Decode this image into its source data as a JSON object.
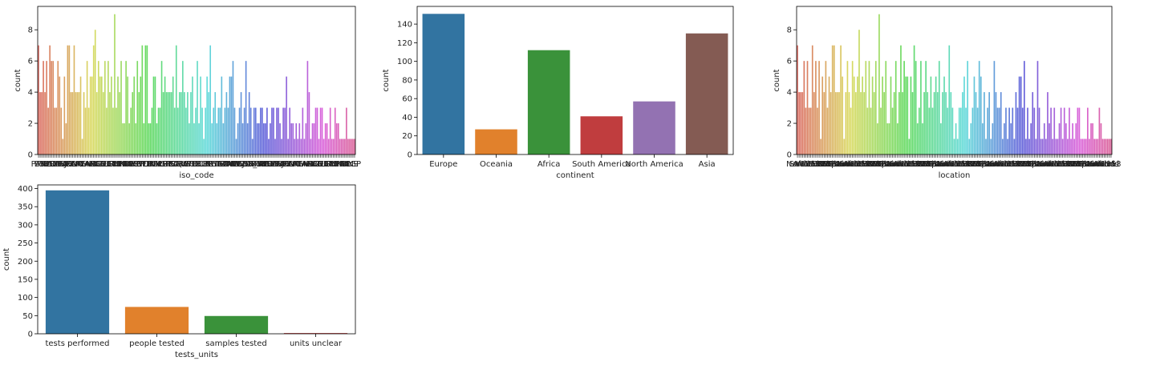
{
  "chart_data": [
    {
      "type": "bar",
      "xlabel": "iso_code",
      "ylabel": "count",
      "ylim": [
        0,
        9.5
      ],
      "yticks": [
        0,
        2,
        4,
        6,
        8
      ],
      "tick_label_seed": [
        "PAK",
        "ESP",
        "FRA",
        "NLD",
        "USA",
        "GBR",
        "DEU",
        "ITA",
        "IND",
        "BRA",
        "JPN",
        "KOR",
        "ZAF",
        "NGA",
        "KEN",
        "CAN",
        "MEX",
        "ARG",
        "AUS",
        "NZL",
        "RUS",
        "TUR",
        "EGY",
        "IRN",
        "CHN",
        "THA",
        "VNM",
        "PHL",
        "IDN",
        "MYS",
        "SGP",
        "POL",
        "SWE",
        "NOR",
        "FIN",
        "DNK",
        "BEL",
        "CHE",
        "AUT",
        "PRT",
        "GRC",
        "IRL",
        "ISR",
        "SAU",
        "ARE",
        "QAT",
        "KWT",
        "CHL",
        "PER",
        "COL",
        "ECU",
        "BOL",
        "URY",
        "PRY",
        "GHA",
        "ETH",
        "UGA",
        "TZA",
        "RWA",
        "ZMB",
        "ZWE",
        "MAR",
        "TUN",
        "DZA",
        "LBN",
        "JOR",
        "OWID_WRL"
      ],
      "values": [
        7,
        4,
        4,
        6,
        4,
        6,
        3,
        7,
        6,
        6,
        3,
        3,
        6,
        5,
        3,
        1,
        5,
        2,
        7,
        7,
        4,
        4,
        7,
        4,
        4,
        4,
        5,
        1,
        4,
        3,
        6,
        3,
        5,
        5,
        7,
        8,
        4,
        6,
        5,
        5,
        4,
        6,
        3,
        6,
        4,
        5,
        3,
        9,
        3,
        5,
        4,
        6,
        2,
        2,
        6,
        5,
        2,
        3,
        4,
        5,
        2,
        6,
        4,
        5,
        7,
        2,
        7,
        7,
        2,
        2,
        3,
        5,
        5,
        2,
        3,
        3,
        6,
        4,
        5,
        4,
        4,
        4,
        4,
        5,
        3,
        7,
        3,
        4,
        4,
        6,
        4,
        3,
        4,
        2,
        4,
        5,
        2,
        3,
        6,
        2,
        5,
        3,
        1,
        3,
        5,
        4,
        7,
        2,
        3,
        4,
        2,
        3,
        3,
        5,
        2,
        3,
        4,
        3,
        5,
        5,
        6,
        3,
        1,
        2,
        3,
        4,
        2,
        3,
        6,
        2,
        4,
        3,
        1,
        3,
        3,
        2,
        2,
        3,
        3,
        2,
        2,
        3,
        1,
        2,
        3,
        3,
        1,
        3,
        3,
        2,
        1,
        3,
        3,
        5,
        1,
        3,
        2,
        2,
        1,
        2,
        1,
        2,
        1,
        3,
        1,
        2,
        6,
        4,
        1,
        2,
        2,
        3,
        3,
        1,
        3,
        3,
        1,
        2,
        2,
        1,
        3,
        1,
        1,
        3,
        2,
        2,
        1,
        1,
        1,
        1,
        3,
        1,
        1,
        1,
        1,
        1
      ]
    },
    {
      "type": "bar",
      "xlabel": "continent",
      "ylabel": "count",
      "ylim": [
        0,
        159
      ],
      "yticks": [
        0,
        20,
        40,
        60,
        80,
        100,
        120,
        140
      ],
      "categories": [
        "Europe",
        "Oceania",
        "Africa",
        "South America",
        "North America",
        "Asia"
      ],
      "values": [
        151,
        27,
        112,
        41,
        57,
        130
      ],
      "colors": [
        "#3274a1",
        "#e1812c",
        "#3a923a",
        "#c03d3e",
        "#9372b2",
        "#845b53"
      ]
    },
    {
      "type": "bar",
      "xlabel": "location",
      "ylabel": "count",
      "ylim": [
        0,
        9.5
      ],
      "yticks": [
        0,
        2,
        4,
        6,
        8
      ],
      "tick_label_seed": [
        "North",
        "South",
        "Africa",
        "World",
        "1953",
        "1977",
        "1989",
        "1975",
        "1999",
        "2013",
        "2021",
        "Pakistan",
        "Spain",
        "France",
        "Netherlands"
      ],
      "last_tick_label": "Netherlands",
      "values": [
        7,
        4,
        4,
        4,
        6,
        3,
        6,
        3,
        3,
        7,
        4,
        6,
        3,
        6,
        1,
        5,
        4,
        6,
        3,
        5,
        4,
        7,
        7,
        4,
        4,
        4,
        7,
        5,
        1,
        4,
        6,
        4,
        3,
        6,
        5,
        4,
        5,
        8,
        4,
        5,
        4,
        6,
        3,
        6,
        3,
        5,
        4,
        6,
        2,
        9,
        3,
        5,
        4,
        6,
        2,
        2,
        5,
        3,
        4,
        6,
        2,
        4,
        7,
        4,
        6,
        5,
        5,
        1,
        5,
        4,
        7,
        6,
        2,
        3,
        6,
        2,
        4,
        6,
        4,
        3,
        5,
        3,
        4,
        5,
        4,
        6,
        2,
        4,
        5,
        4,
        3,
        7,
        4,
        3,
        1,
        2,
        1,
        3,
        3,
        4,
        5,
        3,
        6,
        1,
        2,
        3,
        5,
        4,
        3,
        6,
        5,
        2,
        4,
        1,
        3,
        4,
        1,
        2,
        6,
        4,
        3,
        3,
        4,
        1,
        2,
        3,
        1,
        3,
        2,
        3,
        1,
        4,
        3,
        5,
        5,
        3,
        6,
        1,
        3,
        1,
        2,
        4,
        3,
        1,
        6,
        3,
        1,
        1,
        2,
        1,
        4,
        2,
        3,
        1,
        3,
        1,
        1,
        2,
        3,
        1,
        3,
        2,
        1,
        3,
        1,
        2,
        1,
        2,
        3,
        3,
        1,
        1,
        1,
        1,
        3,
        1,
        2,
        2,
        1,
        1,
        1,
        3,
        2,
        1,
        1,
        1,
        1,
        1,
        1
      ]
    },
    {
      "type": "bar",
      "xlabel": "tests_units",
      "ylabel": "count",
      "ylim": [
        0,
        410
      ],
      "yticks": [
        0,
        50,
        100,
        150,
        200,
        250,
        300,
        350,
        400
      ],
      "categories": [
        "tests performed",
        "people tested",
        "samples tested",
        "units unclear"
      ],
      "values": [
        395,
        74,
        49,
        2
      ],
      "colors": [
        "#3274a1",
        "#e1812c",
        "#3a923a",
        "#c03d3e"
      ]
    }
  ]
}
